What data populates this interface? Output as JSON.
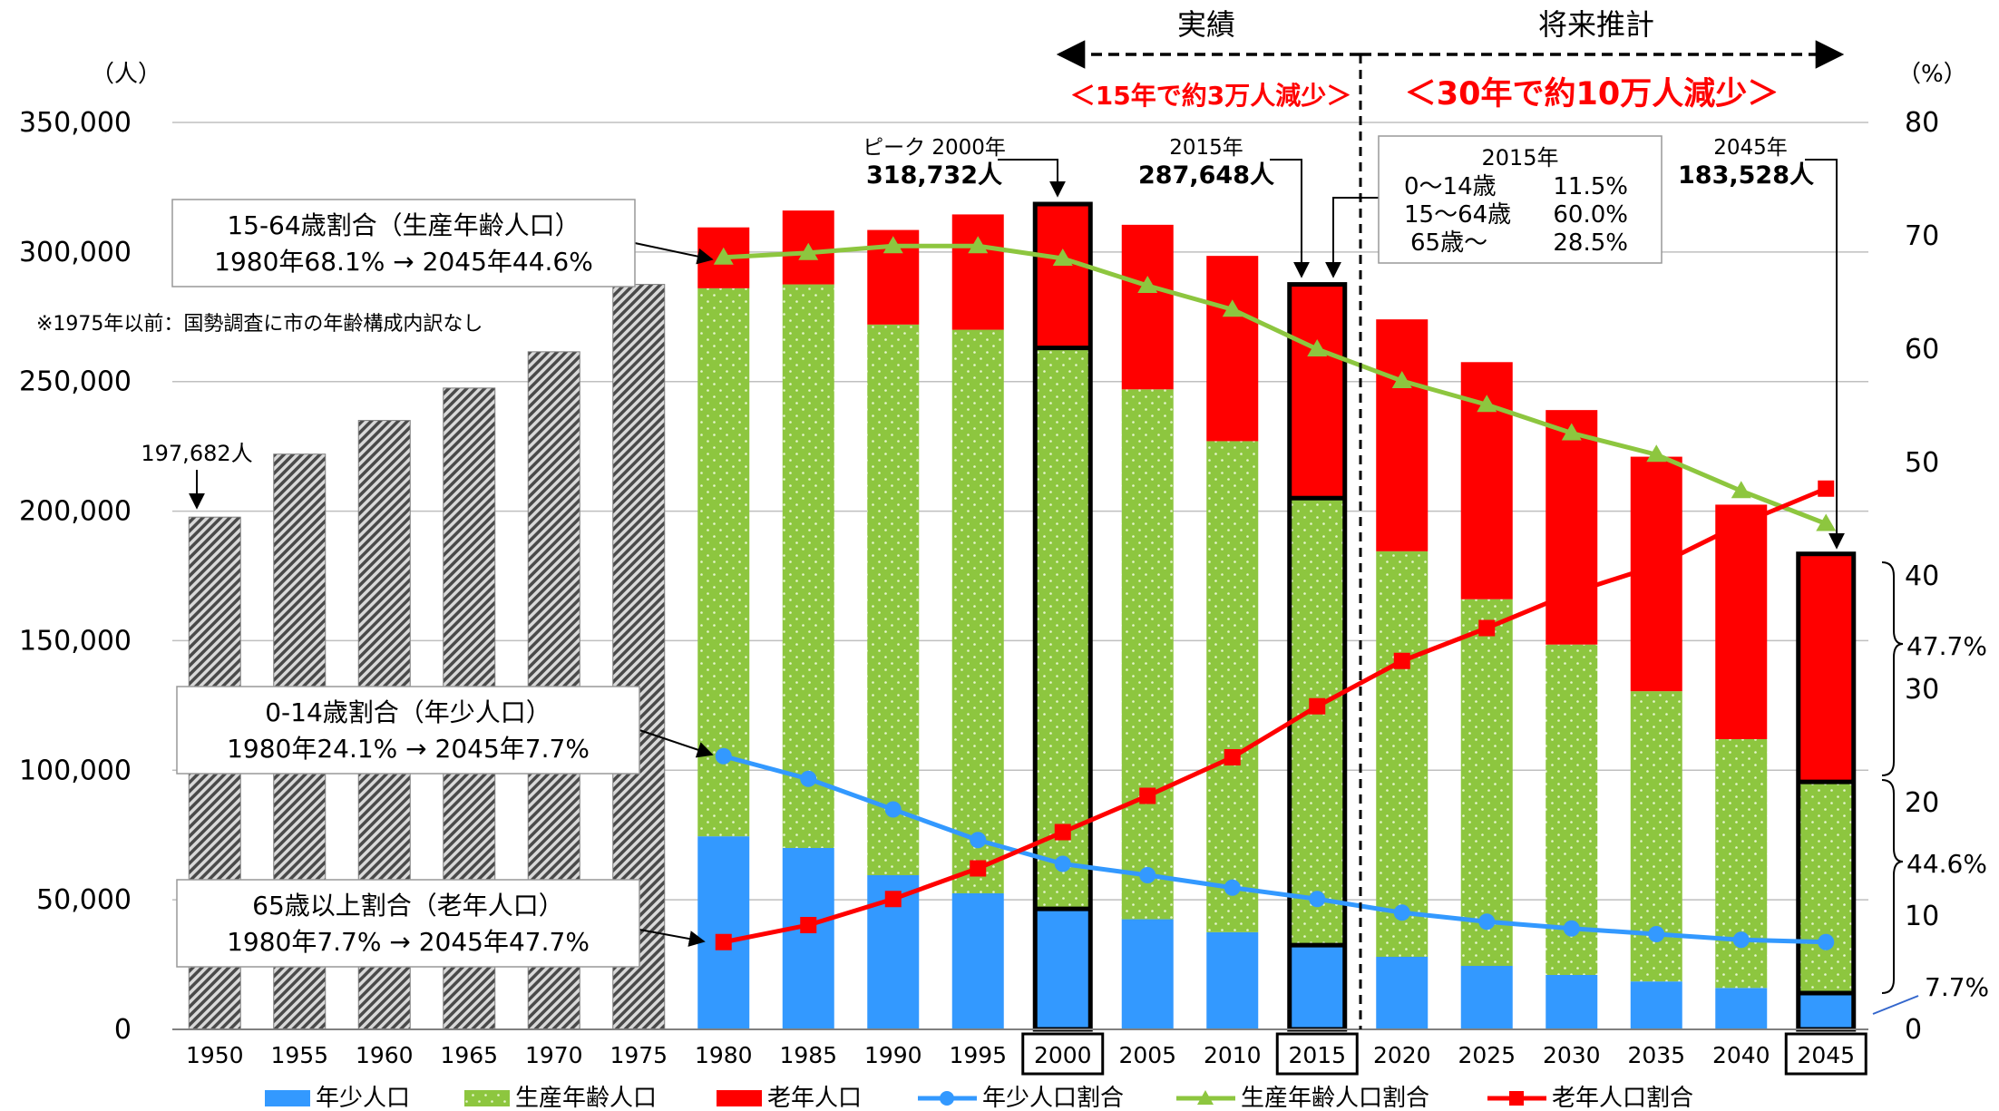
{
  "chart_data": {
    "type": "bar",
    "stacked": true,
    "categories": [
      "1950",
      "1955",
      "1960",
      "1965",
      "1970",
      "1975",
      "1980",
      "1985",
      "1990",
      "1995",
      "2000",
      "2005",
      "2010",
      "2015",
      "2020",
      "2025",
      "2030",
      "2035",
      "2040",
      "2045"
    ],
    "y_left": {
      "unit_label": "（人）",
      "ticks": [
        0,
        50000,
        100000,
        150000,
        200000,
        250000,
        300000,
        350000
      ],
      "tick_labels": [
        "0",
        "50,000",
        "100,000",
        "150,000",
        "200,000",
        "250,000",
        "300,000",
        "350,000"
      ],
      "range": [
        0,
        350000
      ]
    },
    "y_right": {
      "unit_label": "（%）",
      "ticks": [
        0,
        10,
        20,
        30,
        40,
        50,
        60,
        70,
        80
      ],
      "tick_labels": [
        "0",
        "10",
        "20",
        "30",
        "40",
        "50",
        "60",
        "70",
        "80"
      ],
      "range": [
        0,
        80
      ]
    },
    "total_population": [
      197682,
      222000,
      235000,
      247500,
      261500,
      287500,
      null,
      null,
      null,
      null,
      null,
      null,
      null,
      null,
      null,
      null,
      null,
      null,
      null,
      null
    ],
    "bar_series": [
      {
        "name": "年少人口",
        "color": "#3399FF",
        "values": [
          null,
          null,
          null,
          null,
          null,
          null,
          74500,
          70000,
          59500,
          52500,
          46500,
          42500,
          37500,
          32500,
          28000,
          24500,
          21000,
          18500,
          16000,
          14000
        ]
      },
      {
        "name": "生産年齢人口",
        "color": "#8DC63F",
        "values": [
          null,
          null,
          null,
          null,
          null,
          null,
          211500,
          217500,
          212500,
          217500,
          216500,
          204500,
          189500,
          172500,
          156500,
          141500,
          127500,
          112000,
          96000,
          81500
        ]
      },
      {
        "name": "老年人口",
        "color": "#FF0000",
        "values": [
          null,
          null,
          null,
          null,
          null,
          null,
          23500,
          28500,
          36500,
          44500,
          55500,
          63500,
          71500,
          82500,
          89500,
          91500,
          90500,
          90500,
          90500,
          88000
        ]
      }
    ],
    "line_series": [
      {
        "name": "年少人口割合",
        "color": "#3399FF",
        "marker": "circle",
        "values": [
          null,
          null,
          null,
          null,
          null,
          null,
          24.1,
          22.1,
          19.4,
          16.7,
          14.6,
          13.6,
          12.5,
          11.5,
          10.3,
          9.5,
          8.9,
          8.4,
          7.9,
          7.7
        ]
      },
      {
        "name": "生産年齢人口割合",
        "color": "#8DC63F",
        "marker": "triangle",
        "values": [
          null,
          null,
          null,
          null,
          null,
          null,
          68.1,
          68.5,
          69.1,
          69.1,
          68.0,
          65.6,
          63.5,
          60.0,
          57.2,
          55.1,
          52.6,
          50.7,
          47.5,
          44.6
        ]
      },
      {
        "name": "老年人口割合",
        "color": "#FF0000",
        "marker": "square",
        "values": [
          null,
          null,
          null,
          null,
          null,
          null,
          7.7,
          9.2,
          11.5,
          14.2,
          17.4,
          20.6,
          24.0,
          28.5,
          32.5,
          35.4,
          38.5,
          40.9,
          44.6,
          47.7
        ]
      }
    ],
    "highlighted_years": [
      "2000",
      "2015",
      "2045"
    ],
    "legend": {
      "placement": "bottom",
      "items": [
        "年少人口",
        "生産年齢人口",
        "老年人口",
        "年少人口割合",
        "生産年齢人口割合",
        "老年人口割合"
      ]
    },
    "annotations": {
      "period_actual": "実績",
      "period_forecast": "将来推計",
      "decrease_15": "＜15年で約3万人減少＞",
      "decrease_30": "＜30年で約10万人減少＞",
      "pop_1950": "197,682人",
      "peak_label": "ピーク 2000年",
      "peak_value": "318,732人",
      "y2015_label": "2015年",
      "y2015_value": "287,648人",
      "y2045_label": "2045年",
      "y2045_value": "183,528人",
      "note_1975": "※1975年以前：国勢調査に市の年齢構成内訳なし",
      "box_working": [
        "15-64歳割合（生産年齢人口）",
        "1980年68.1% → 2045年44.6%"
      ],
      "box_young": [
        "0-14歳割合（年少人口）",
        "1980年24.1% → 2045年7.7%"
      ],
      "box_old": [
        "65歳以上割合（老年人口）",
        "1980年7.7% → 2045年47.7%"
      ],
      "box_2015_title": "2015年",
      "box_2015_rows": [
        {
          "label": "0～14歳",
          "value": "11.5%"
        },
        {
          "label": "15～64歳",
          "value": "60.0%"
        },
        {
          "label": "65歳～",
          "value": "28.5%"
        }
      ],
      "brace_old": "47.7%",
      "brace_working": "44.6%",
      "brace_young": "7.7%"
    }
  }
}
